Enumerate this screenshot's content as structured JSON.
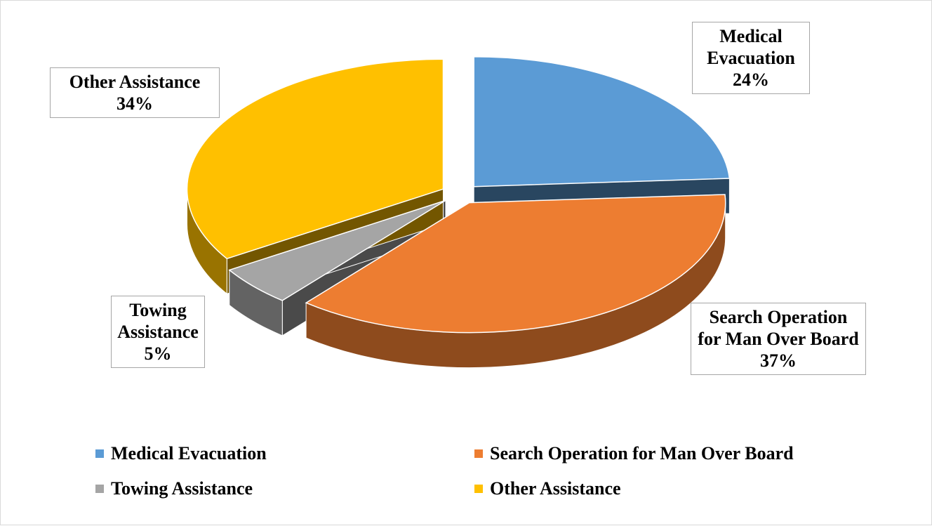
{
  "chart_data": {
    "type": "pie",
    "three_d": true,
    "exploded": true,
    "categories": [
      "Medical Evacuation",
      "Search Operation for Man Over Board",
      "Towing Assistance",
      "Other Assistance"
    ],
    "values": [
      24,
      37,
      5,
      34
    ],
    "value_labels": [
      "24%",
      "37%",
      "5%",
      "34%"
    ],
    "colors": [
      "#5b9bd5",
      "#ed7d31",
      "#a5a5a5",
      "#ffc000"
    ],
    "legend": "bottom"
  }
}
